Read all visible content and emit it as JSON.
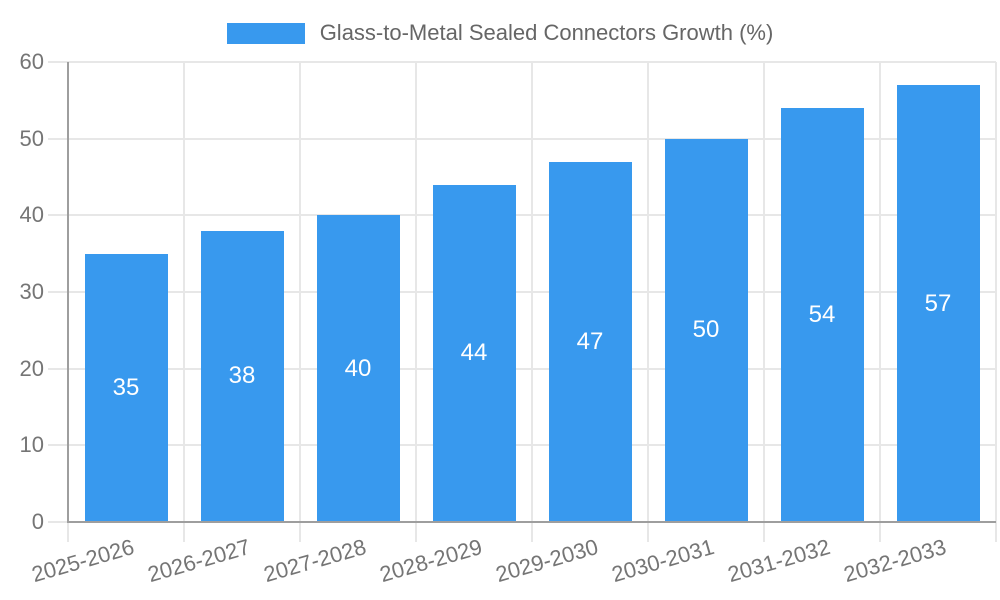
{
  "legend": {
    "label": "Glass-to-Metal Sealed Connectors Growth (%)"
  },
  "chart_data": {
    "type": "bar",
    "title": "Glass-to-Metal Sealed Connectors Growth (%)",
    "categories": [
      "2025-2026",
      "2026-2027",
      "2027-2028",
      "2028-2029",
      "2029-2030",
      "2030-2031",
      "2031-2032",
      "2032-2033"
    ],
    "values": [
      35,
      38,
      40,
      44,
      47,
      50,
      54,
      57
    ],
    "xlabel": "",
    "ylabel": "",
    "ylim": [
      0,
      60
    ],
    "yticks": [
      0,
      10,
      20,
      30,
      40,
      50,
      60
    ],
    "grid": true,
    "legend_position": "top-center",
    "value_labels_position": "inside-center",
    "colors": {
      "bar": "#3899ee",
      "value_label": "#ffffff",
      "legend_text": "#666666",
      "axis_tick_text": "#757575",
      "gridline": "#e7e7e7",
      "axis_line": "#9e9e9e",
      "background": "#ffffff"
    }
  }
}
